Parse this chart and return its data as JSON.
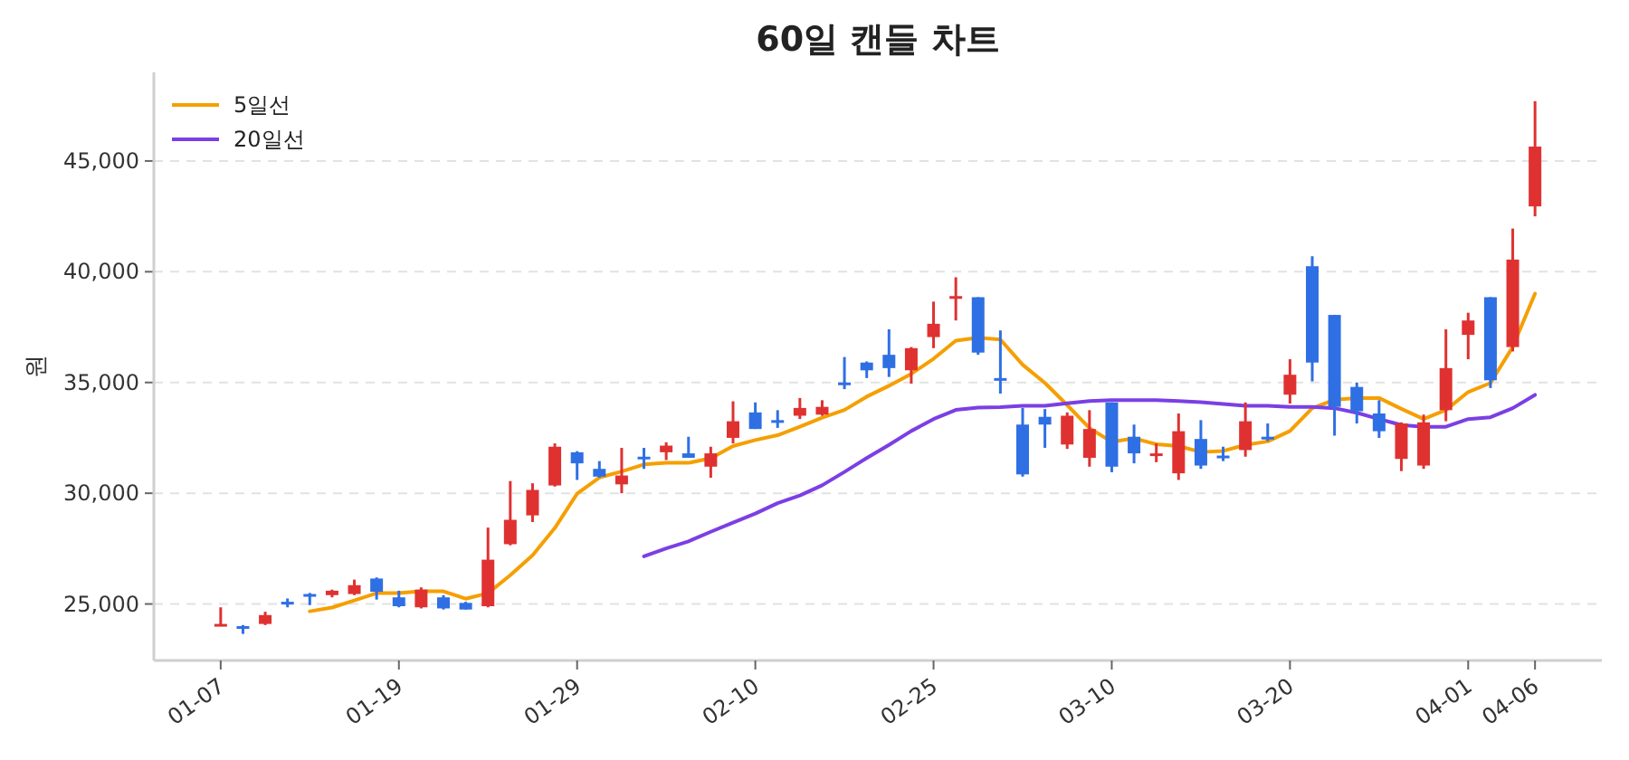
{
  "chart_data": {
    "type": "candlestick",
    "title": "60일 캔들 차트",
    "ylabel": "원",
    "categories": [
      "01-07",
      null,
      null,
      null,
      null,
      null,
      null,
      null,
      "01-19",
      null,
      null,
      null,
      null,
      null,
      null,
      null,
      "01-29",
      null,
      null,
      null,
      null,
      null,
      null,
      null,
      "02-10",
      null,
      null,
      null,
      null,
      null,
      null,
      null,
      "02-25",
      null,
      null,
      null,
      null,
      null,
      null,
      null,
      "03-10",
      null,
      null,
      null,
      null,
      null,
      null,
      null,
      "03-20",
      null,
      null,
      null,
      null,
      null,
      null,
      null,
      "04-01",
      null,
      null,
      "04-06"
    ],
    "ohlc": [
      [
        24050,
        24850,
        24000,
        24100
      ],
      [
        24000,
        24050,
        23650,
        23950
      ],
      [
        24100,
        24650,
        24050,
        24500
      ],
      [
        25100,
        25250,
        24850,
        25050
      ],
      [
        25450,
        25500,
        24950,
        25400
      ],
      [
        25400,
        25650,
        25300,
        25600
      ],
      [
        25450,
        26100,
        25400,
        25850
      ],
      [
        26150,
        26200,
        25200,
        25550
      ],
      [
        25300,
        25600,
        24850,
        24900
      ],
      [
        24850,
        25750,
        24800,
        25650
      ],
      [
        25300,
        25400,
        24750,
        24800
      ],
      [
        25050,
        25100,
        24750,
        24750
      ],
      [
        24900,
        28450,
        24850,
        27000
      ],
      [
        27700,
        30550,
        27650,
        28800
      ],
      [
        29000,
        30450,
        28700,
        30150
      ],
      [
        30350,
        32250,
        30300,
        32100
      ],
      [
        31850,
        31900,
        30600,
        31350
      ],
      [
        31100,
        31450,
        30700,
        30750
      ],
      [
        30400,
        32050,
        30000,
        30800
      ],
      [
        31650,
        32050,
        31100,
        31600
      ],
      [
        31850,
        32300,
        31500,
        32150
      ],
      [
        31800,
        32550,
        31600,
        31600
      ],
      [
        31200,
        32100,
        30700,
        31800
      ],
      [
        32500,
        34150,
        32250,
        33250
      ],
      [
        33650,
        34100,
        32900,
        32900
      ],
      [
        33300,
        33750,
        32950,
        33200
      ],
      [
        33500,
        34300,
        33350,
        33850
      ],
      [
        33550,
        34200,
        33500,
        33900
      ],
      [
        35000,
        36150,
        34700,
        34950
      ],
      [
        35900,
        35950,
        35200,
        35550
      ],
      [
        36250,
        37400,
        35250,
        35650
      ],
      [
        35550,
        36600,
        34950,
        36550
      ],
      [
        37050,
        38650,
        36550,
        37650
      ],
      [
        38850,
        39750,
        37800,
        38900
      ],
      [
        38850,
        38850,
        36250,
        36350
      ],
      [
        35200,
        37350,
        34500,
        35150
      ],
      [
        33100,
        33850,
        30750,
        30850
      ],
      [
        33450,
        33800,
        32050,
        33100
      ],
      [
        32200,
        33650,
        32000,
        33500
      ],
      [
        31600,
        33750,
        31200,
        32900
      ],
      [
        34100,
        34100,
        30950,
        31200
      ],
      [
        32550,
        33100,
        31350,
        31800
      ],
      [
        31750,
        32250,
        31400,
        31800
      ],
      [
        30900,
        33600,
        30600,
        32800
      ],
      [
        32450,
        33300,
        31100,
        31250
      ],
      [
        31700,
        32100,
        31450,
        31650
      ],
      [
        31950,
        34100,
        31650,
        33250
      ],
      [
        32550,
        33150,
        32350,
        32500
      ],
      [
        34450,
        36050,
        34050,
        35350
      ],
      [
        40250,
        40700,
        35050,
        35900
      ],
      [
        38050,
        38050,
        32600,
        33900
      ],
      [
        34800,
        35000,
        33150,
        33700
      ],
      [
        33600,
        34200,
        32500,
        32800
      ],
      [
        31550,
        33200,
        31000,
        33150
      ],
      [
        31250,
        33550,
        31100,
        33200
      ],
      [
        33750,
        37400,
        33250,
        35650
      ],
      [
        37150,
        38150,
        36050,
        37800
      ],
      [
        38850,
        38850,
        34750,
        35100
      ],
      [
        36600,
        41950,
        36400,
        40550
      ],
      [
        42950,
        47700,
        42500,
        45650
      ]
    ],
    "colors": [
      "#e03131",
      "#2f6fe4",
      "#e03131",
      "#2f6fe4",
      "#2f6fe4",
      "#e03131",
      "#e03131",
      "#2f6fe4",
      "#2f6fe4",
      "#e03131",
      "#2f6fe4",
      "#2f6fe4",
      "#e03131",
      "#e03131",
      "#e03131",
      "#e03131",
      "#2f6fe4",
      "#2f6fe4",
      "#e03131",
      "#2f6fe4",
      "#e03131",
      "#2f6fe4",
      "#e03131",
      "#e03131",
      "#2f6fe4",
      "#2f6fe4",
      "#e03131",
      "#e03131",
      "#2f6fe4",
      "#2f6fe4",
      "#2f6fe4",
      "#e03131",
      "#e03131",
      "#e03131",
      "#2f6fe4",
      "#2f6fe4",
      "#2f6fe4",
      "#2f6fe4",
      "#e03131",
      "#e03131",
      "#2f6fe4",
      "#2f6fe4",
      "#e03131",
      "#e03131",
      "#2f6fe4",
      "#2f6fe4",
      "#e03131",
      "#2f6fe4",
      "#e03131",
      "#2f6fe4",
      "#2f6fe4",
      "#2f6fe4",
      "#2f6fe4",
      "#e03131",
      "#e03131",
      "#e03131",
      "#e03131",
      "#2f6fe4",
      "#e03131",
      "#e03131"
    ],
    "series": [
      {
        "name": "5일선",
        "type": "line",
        "color": "#f59f00",
        "values": [
          null,
          null,
          null,
          null,
          24670,
          24840,
          25160,
          25490,
          25490,
          25570,
          25570,
          25240,
          25490,
          26300,
          27200,
          28430,
          29980,
          30710,
          30980,
          31300,
          31370,
          31370,
          31580,
          32130,
          32400,
          32620,
          33000,
          33410,
          33760,
          34360,
          34850,
          35390,
          36070,
          36890,
          37020,
          36940,
          35800,
          34980,
          33980,
          32940,
          32320,
          32480,
          32210,
          32130,
          31860,
          31910,
          32180,
          32340,
          32810,
          33840,
          34220,
          34300,
          34300,
          33810,
          33350,
          33760,
          34570,
          34980,
          36610,
          39010
        ]
      },
      {
        "name": "20일선",
        "type": "line",
        "color": "#7b3fe4",
        "values": [
          null,
          null,
          null,
          null,
          null,
          null,
          null,
          null,
          null,
          null,
          null,
          null,
          null,
          null,
          null,
          null,
          null,
          null,
          null,
          27150,
          27510,
          27830,
          28260,
          28670,
          29080,
          29550,
          29900,
          30360,
          30960,
          31590,
          32180,
          32810,
          33350,
          33760,
          33870,
          33890,
          33950,
          33950,
          34060,
          34160,
          34200,
          34200,
          34200,
          34160,
          34110,
          34030,
          33950,
          33950,
          33900,
          33900,
          33840,
          33630,
          33350,
          33080,
          33000,
          33000,
          33350,
          33430,
          33840,
          34440
        ]
      }
    ],
    "ylim": [
      22450,
      49000
    ],
    "yticks": [
      {
        "value": 25000,
        "label": "25,000"
      },
      {
        "value": 30000,
        "label": "30,000"
      },
      {
        "value": 35000,
        "label": "35,000"
      },
      {
        "value": 40000,
        "label": "40,000"
      },
      {
        "value": 45000,
        "label": "45,000"
      }
    ],
    "grid": "y",
    "legend": "top left"
  }
}
